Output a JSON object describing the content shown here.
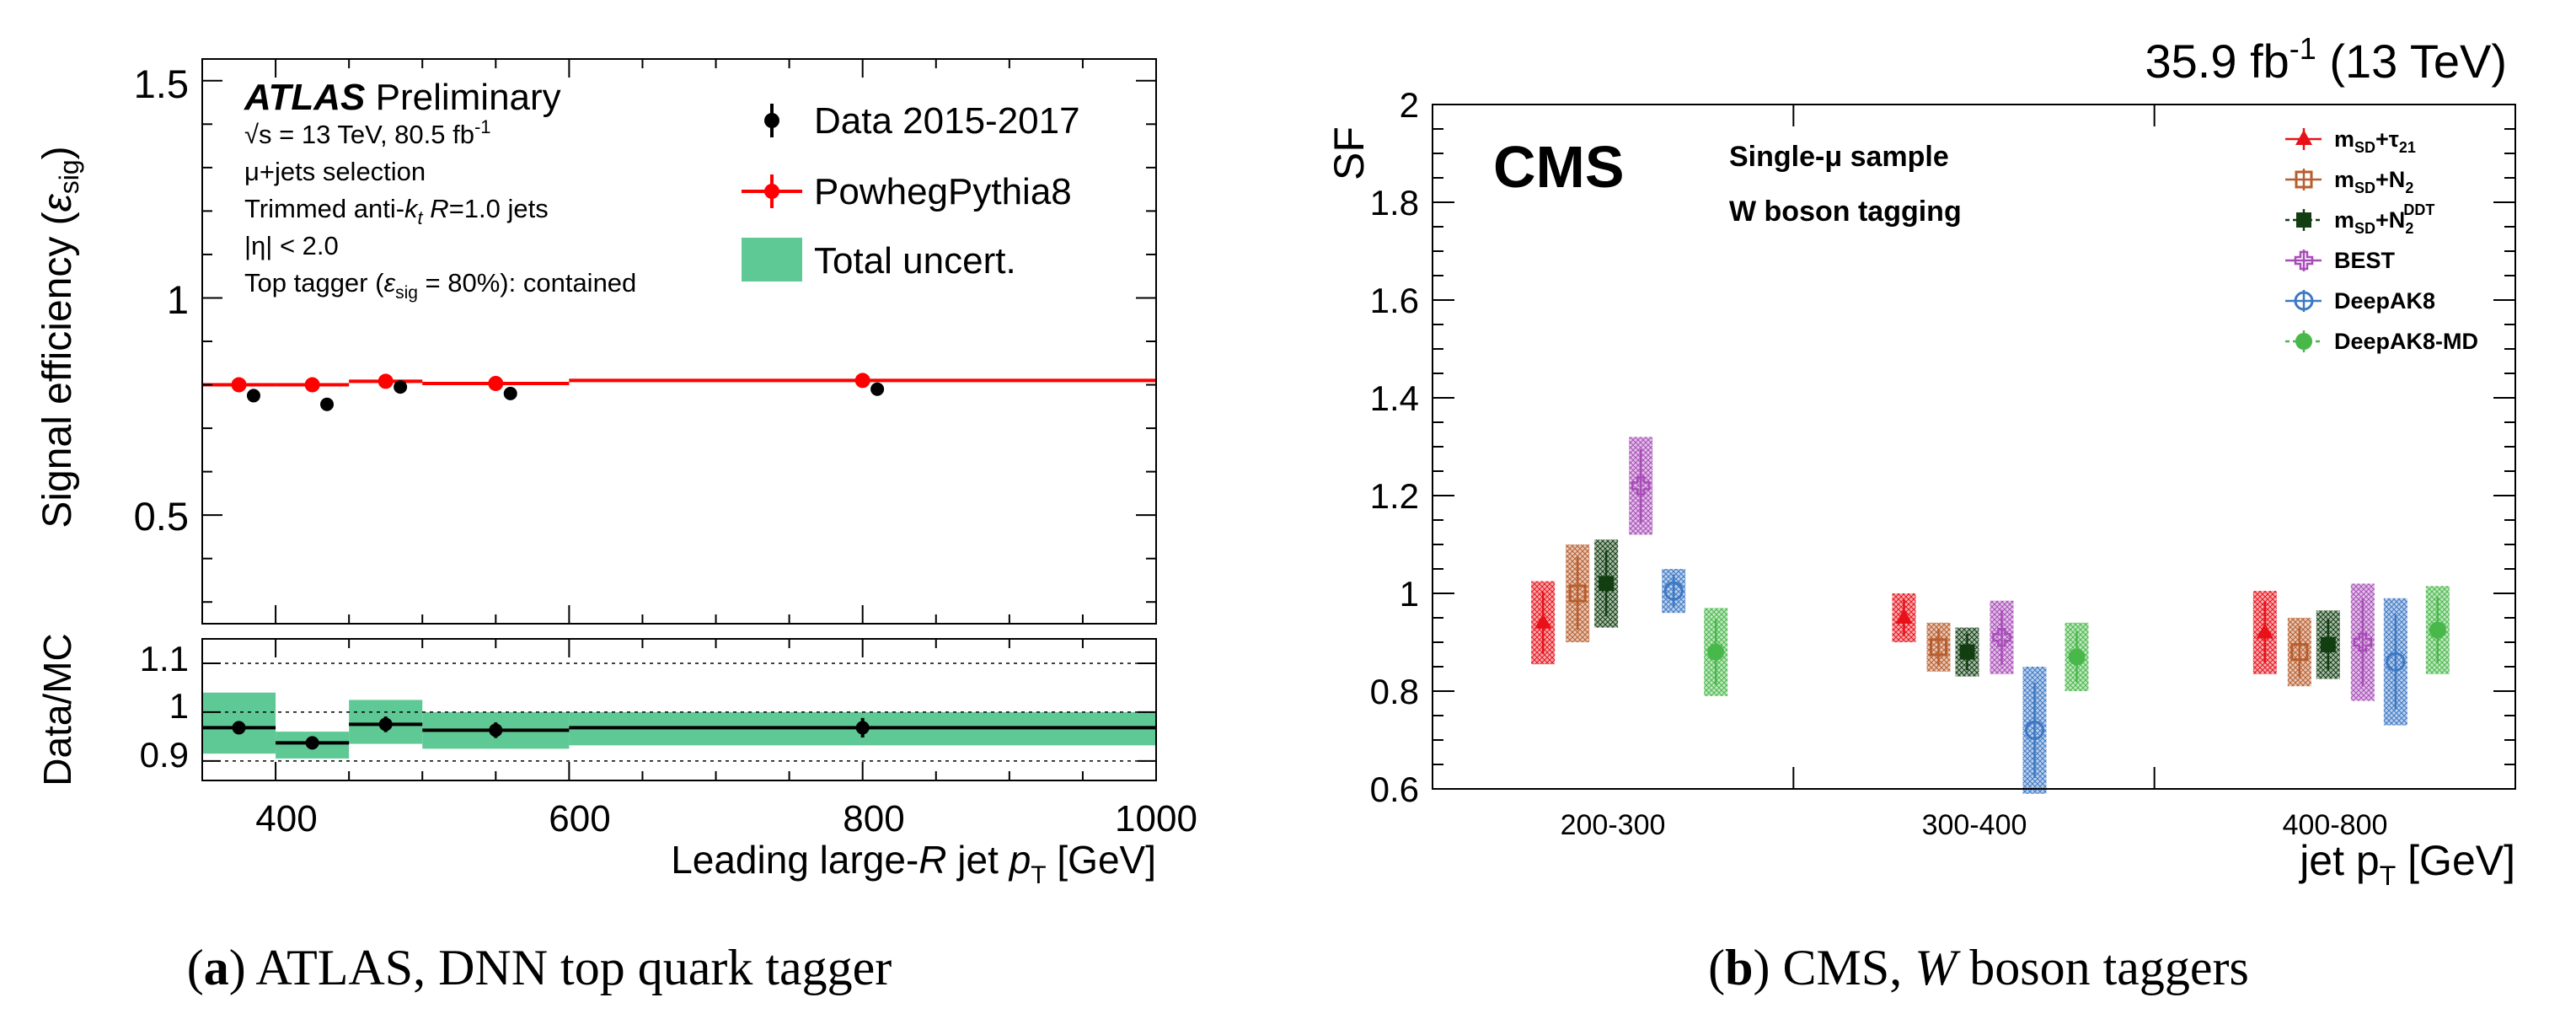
{
  "captions": {
    "a_label": "a",
    "a_text": "ATLAS, DNN top quark tagger",
    "b_label": "b",
    "b_text_pre": "CMS, ",
    "b_text_it": "W",
    "b_text_post": " boson taggers"
  },
  "atlas": {
    "brand": "ATLAS",
    "preliminary": "Preliminary",
    "line1_sqrt": "√s = 13 TeV, 80.5 fb",
    "line1_sup": "-1",
    "line2": "μ+jets selection",
    "line3_pre": "Trimmed anti-",
    "line3_k": "k",
    "line3_t": "t",
    "line3_R": "R",
    "line3_post": "=1.0 jets",
    "line4": "|η| < 2.0",
    "line5_pre": "Top tagger (",
    "line5_eps": "ε",
    "line5_sub": "sig",
    "line5_post": " = 80%): contained",
    "legend_data": "Data 2015-2017",
    "legend_mc": "PowhegPythia8",
    "legend_unc": "Total uncert.",
    "ylabel_top_pre": "Signal efficiency (",
    "ylabel_top_eps": "ε",
    "ylabel_top_sub": "sig",
    "ylabel_top_post": ")",
    "ylabel_ratio": "Data/MC",
    "xlabel_pre": "Leading large-",
    "xlabel_R": "R",
    "xlabel_mid": " jet ",
    "xlabel_p": "p",
    "xlabel_T": "T",
    "xlabel_unit": " [GeV]",
    "top_ticks": [
      "0.5",
      "1",
      "1.5"
    ],
    "ratio_ticks": [
      "0.9",
      "1",
      "1.1"
    ],
    "x_ticks": [
      "400",
      "600",
      "800",
      "1000"
    ],
    "colors": {
      "mc": "#ff0000",
      "data": "#000000",
      "unc": "#5fc995"
    }
  },
  "cms": {
    "lumi_val": "35.9 fb",
    "lumi_sup": "-1",
    "lumi_energy": "(13 TeV)",
    "brand": "CMS",
    "sample_pre": "Single-",
    "sample_mu": "μ",
    "sample_post": " sample",
    "tagging": "W boson tagging",
    "ylabel": "SF",
    "xlabel_pre": "jet p",
    "xlabel_T": "T",
    "xlabel_unit": " [GeV]",
    "y_ticks": [
      "0.6",
      "0.8",
      "1",
      "1.2",
      "1.4",
      "1.6",
      "1.8",
      "2"
    ],
    "legend": [
      {
        "name": "msd-tau21",
        "m": "m",
        "sd": "SD",
        "rest": "+τ",
        "sub": "21",
        "sup": ""
      },
      {
        "name": "msd-n2",
        "m": "m",
        "sd": "SD",
        "rest": "+N",
        "sub": "2",
        "sup": ""
      },
      {
        "name": "msd-n2ddt",
        "m": "m",
        "sd": "SD",
        "rest": "+N",
        "sub": "2",
        "sup": "DDT"
      },
      {
        "name": "best",
        "m": "",
        "sd": "",
        "rest": "BEST",
        "sub": "",
        "sup": ""
      },
      {
        "name": "deepak8",
        "m": "",
        "sd": "",
        "rest": "DeepAK8",
        "sub": "",
        "sup": ""
      },
      {
        "name": "deepak8md",
        "m": "",
        "sd": "",
        "rest": "DeepAK8-MD",
        "sub": "",
        "sup": ""
      }
    ]
  },
  "chart_data": [
    {
      "type": "scatter",
      "title": "ATLAS Preliminary — signal efficiency",
      "xlabel": "Leading large-R jet pT [GeV]",
      "ylabel": "Signal efficiency (εsig)",
      "xlim": [
        350,
        1000
      ],
      "ylim": [
        0.25,
        1.55
      ],
      "bins": [
        [
          350,
          400
        ],
        [
          400,
          450
        ],
        [
          450,
          500
        ],
        [
          500,
          600
        ],
        [
          600,
          1000
        ]
      ],
      "series": [
        {
          "name": "Data 2015-2017",
          "x": [
            385,
            435,
            485,
            560,
            810
          ],
          "y": [
            0.775,
            0.755,
            0.795,
            0.78,
            0.79
          ],
          "yerr": [
            0.008,
            0.008,
            0.008,
            0.008,
            0.015
          ]
        },
        {
          "name": "PowhegPythia8",
          "x": [
            375,
            425,
            475,
            550,
            800
          ],
          "y": [
            0.8,
            0.8,
            0.808,
            0.803,
            0.81
          ]
        }
      ]
    },
    {
      "type": "scatter",
      "title": "Data/MC ratio",
      "ylabel": "Data/MC",
      "xlim": [
        350,
        1000
      ],
      "ylim": [
        0.86,
        1.15
      ],
      "reference_lines": [
        0.9,
        1.0,
        1.1
      ],
      "series": [
        {
          "name": "Data/MC",
          "x": [
            375,
            425,
            475,
            550,
            800
          ],
          "xerr_lo": [
            25,
            25,
            25,
            50,
            200
          ],
          "xerr_hi": [
            25,
            25,
            25,
            50,
            200
          ],
          "y": [
            0.968,
            0.937,
            0.975,
            0.963,
            0.968
          ],
          "yerr": [
            0.01,
            0.008,
            0.016,
            0.016,
            0.02
          ]
        },
        {
          "name": "Total uncert.",
          "x_lo": [
            350,
            400,
            450,
            500,
            600
          ],
          "x_hi": [
            400,
            450,
            500,
            600,
            1000
          ],
          "lo": [
            0.915,
            0.905,
            0.935,
            0.925,
            0.932
          ],
          "hi": [
            1.04,
            0.96,
            1.025,
            1.0,
            1.0
          ]
        }
      ]
    },
    {
      "type": "scatter",
      "title": "CMS W boson tagging scale factors",
      "xlabel": "jet pT [GeV]",
      "ylabel": "SF",
      "categories": [
        "200-300",
        "300-400",
        "400-800"
      ],
      "ylim": [
        0.6,
        2.0
      ],
      "series": [
        {
          "name": "mSD+τ21",
          "color": "#e8111a",
          "marker": "triangle",
          "values": [
            0.94,
            0.95,
            0.92
          ],
          "err": [
            0.085,
            0.05,
            0.085
          ]
        },
        {
          "name": "mSD+N2",
          "color": "#b85d2e",
          "marker": "open-square",
          "values": [
            1.0,
            0.89,
            0.88
          ],
          "err": [
            0.1,
            0.05,
            0.07
          ]
        },
        {
          "name": "mSD+N2DDT",
          "color": "#123e12",
          "marker": "filled-square",
          "values": [
            1.02,
            0.88,
            0.895
          ],
          "err": [
            0.09,
            0.05,
            0.07
          ]
        },
        {
          "name": "BEST",
          "color": "#a84db8",
          "marker": "open-cross",
          "values": [
            1.22,
            0.91,
            0.9
          ],
          "err": [
            0.1,
            0.075,
            0.12
          ]
        },
        {
          "name": "DeepAK8",
          "color": "#3d78c4",
          "marker": "open-circle",
          "values": [
            1.005,
            0.72,
            0.86
          ],
          "err": [
            0.045,
            0.13,
            0.13
          ]
        },
        {
          "name": "DeepAK8-MD",
          "color": "#49b84b",
          "marker": "filled-circle",
          "values": [
            0.88,
            0.87,
            0.925
          ],
          "err": [
            0.09,
            0.07,
            0.09
          ]
        }
      ]
    }
  ]
}
